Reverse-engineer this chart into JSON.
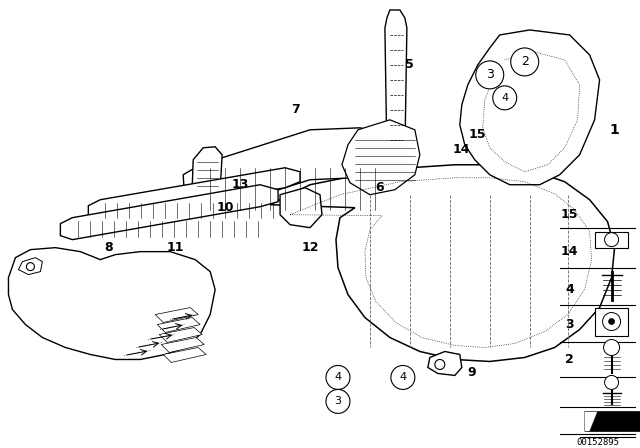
{
  "bg_color": "#ffffff",
  "part_number": "00152895",
  "fig_width": 6.4,
  "fig_height": 4.48,
  "dpi": 100
}
